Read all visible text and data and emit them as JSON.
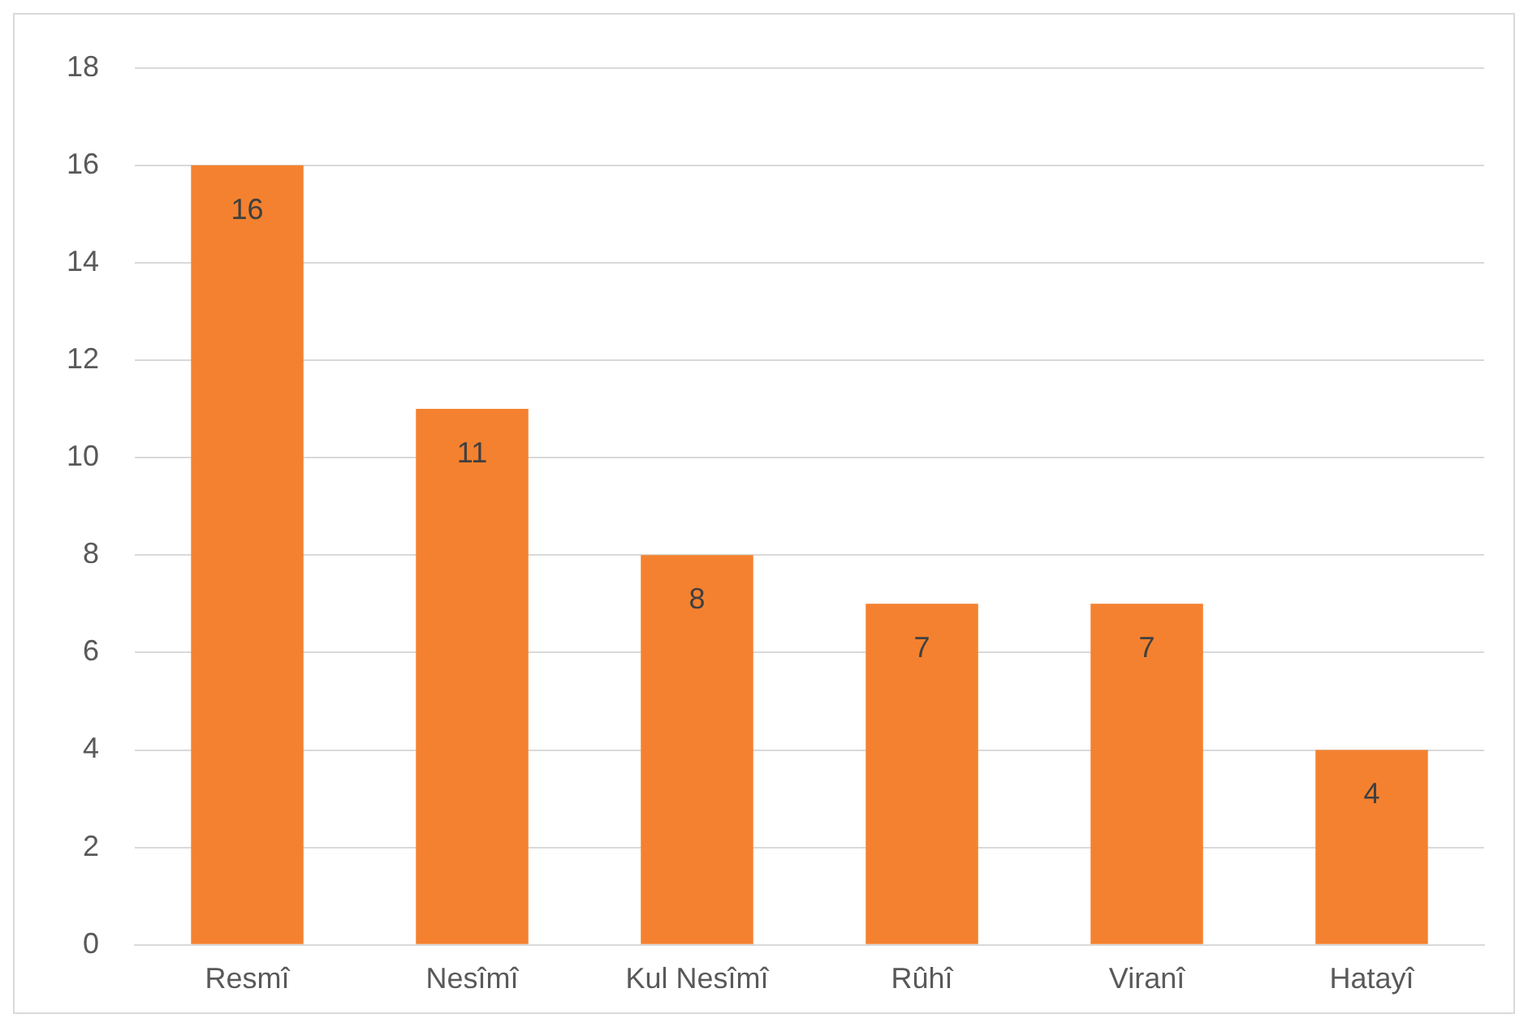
{
  "chart_data": {
    "type": "bar",
    "categories": [
      "Resmî",
      "Nesîmî",
      "Kul Nesîmî",
      "Rûhî",
      "Viranî",
      "Hatayî"
    ],
    "values": [
      16,
      11,
      8,
      7,
      7,
      4
    ],
    "color": "#f4812f",
    "ylim": [
      0,
      18
    ],
    "yticks": [
      0,
      2,
      4,
      6,
      8,
      10,
      12,
      14,
      16,
      18
    ],
    "grid": "y",
    "data_labels": true
  }
}
